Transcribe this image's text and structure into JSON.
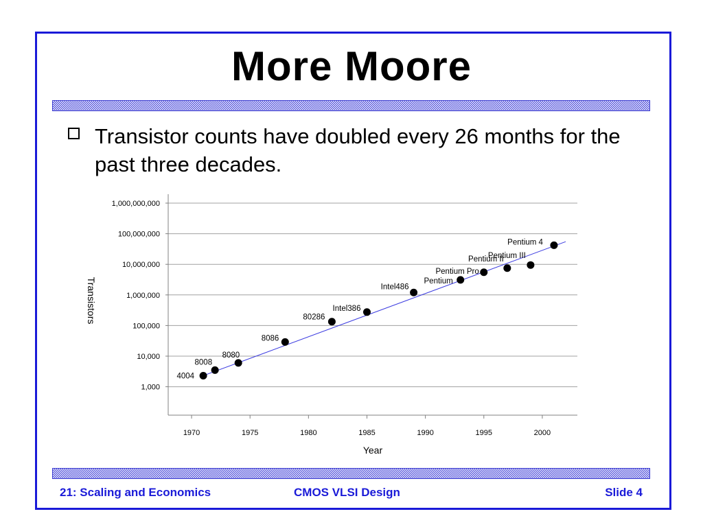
{
  "slide": {
    "title": "More Moore",
    "bullet": "Transistor counts have doubled every 26 months for the past three decades.",
    "footer_left": "21: Scaling and Economics",
    "footer_center": "CMOS VLSI Design",
    "footer_right": "Slide 4"
  },
  "colors": {
    "frame": "#1a1ad8",
    "accent": "#1a1ad8",
    "trend_line": "#3a3ae0",
    "points": "#000000"
  },
  "chart_data": {
    "type": "scatter",
    "xlabel": "Year",
    "ylabel": "Transistors",
    "xlim": [
      1968,
      2003
    ],
    "x_ticks": [
      1970,
      1975,
      1980,
      1985,
      1990,
      1995,
      2000
    ],
    "y_scale": "log",
    "ylim": [
      100,
      1000000000
    ],
    "y_ticks": [
      1000,
      10000,
      100000,
      1000000,
      10000000,
      100000000,
      1000000000
    ],
    "y_tick_labels": [
      "1,000",
      "10,000",
      "100,000",
      "1,000,000",
      "10,000,000",
      "100,000,000",
      "1,000,000,000"
    ],
    "grid": "horizontal",
    "points": [
      {
        "label": "4004",
        "x": 1971,
        "y": 2300
      },
      {
        "label": "8008",
        "x": 1972,
        "y": 3500
      },
      {
        "label": "8080",
        "x": 1974,
        "y": 6000
      },
      {
        "label": "8086",
        "x": 1978,
        "y": 29000
      },
      {
        "label": "80286",
        "x": 1982,
        "y": 134000
      },
      {
        "label": "Intel386",
        "x": 1985,
        "y": 275000
      },
      {
        "label": "Intel486",
        "x": 1989,
        "y": 1200000
      },
      {
        "label": "Pentium",
        "x": 1993,
        "y": 3100000
      },
      {
        "label": "Pentium Pro",
        "x": 1995,
        "y": 5500000
      },
      {
        "label": "Pentium II",
        "x": 1997,
        "y": 7500000
      },
      {
        "label": "Pentium III",
        "x": 1999,
        "y": 9500000
      },
      {
        "label": "Pentium 4",
        "x": 2001,
        "y": 42000000
      }
    ],
    "trend_line": {
      "x": [
        1971,
        2002
      ],
      "y": [
        2300,
        55000000
      ]
    }
  }
}
